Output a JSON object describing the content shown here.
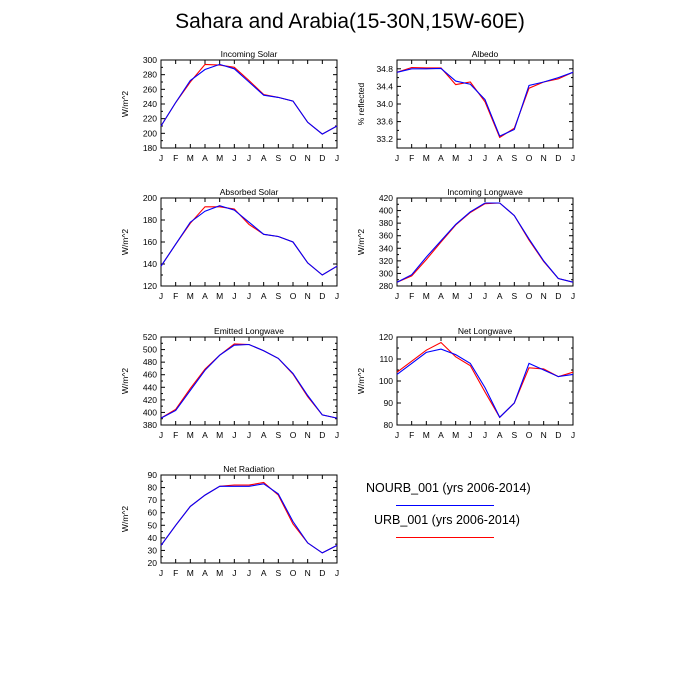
{
  "title": "Sahara and Arabia(15-30N,15W-60E)",
  "months": [
    "J",
    "F",
    "M",
    "A",
    "M",
    "J",
    "J",
    "A",
    "S",
    "O",
    "N",
    "D",
    "J"
  ],
  "legend": [
    {
      "label": "NOURB_001 (yrs 2006-2014)",
      "color": "#0000ff"
    },
    {
      "label": "URB_001 (yrs 2006-2014)",
      "color": "#ff0000"
    }
  ],
  "chart_data": [
    {
      "type": "line",
      "title": "Incoming Solar",
      "ylabel": "W/m^2",
      "ylim": [
        180,
        300
      ],
      "yticks": [
        180,
        200,
        220,
        240,
        260,
        280,
        300
      ],
      "categories": [
        "J",
        "F",
        "M",
        "A",
        "M",
        "J",
        "J",
        "A",
        "S",
        "O",
        "N",
        "D",
        "J"
      ],
      "series": [
        {
          "name": "NOURB_001 (yrs 2006-2014)",
          "color": "#0000ff",
          "values": [
            210,
            242,
            272,
            287,
            294,
            288,
            270,
            252,
            249,
            244,
            215,
            199,
            210
          ]
        },
        {
          "name": "URB_001 (yrs 2006-2014)",
          "color": "#ff0000",
          "values": [
            210,
            242,
            270,
            294,
            293,
            290,
            272,
            253,
            249,
            244,
            215,
            199,
            210
          ]
        }
      ]
    },
    {
      "type": "line",
      "title": "Albedo",
      "ylabel": "% reflected",
      "ylim": [
        33.0,
        35.0
      ],
      "yticks": [
        33.2,
        33.6,
        34.0,
        34.4,
        34.8
      ],
      "categories": [
        "J",
        "F",
        "M",
        "A",
        "M",
        "J",
        "J",
        "A",
        "S",
        "O",
        "N",
        "D",
        "J"
      ],
      "series": [
        {
          "name": "NOURB_001 (yrs 2006-2014)",
          "color": "#0000ff",
          "values": [
            34.72,
            34.8,
            34.8,
            34.81,
            34.52,
            34.45,
            34.1,
            33.27,
            33.42,
            34.42,
            34.5,
            34.6,
            34.72
          ]
        },
        {
          "name": "URB_001 (yrs 2006-2014)",
          "color": "#ff0000",
          "values": [
            34.72,
            34.83,
            34.82,
            34.82,
            34.44,
            34.5,
            34.05,
            33.24,
            33.45,
            34.36,
            34.5,
            34.57,
            34.72
          ]
        }
      ]
    },
    {
      "type": "line",
      "title": "Absorbed Solar",
      "ylabel": "W/m^2",
      "ylim": [
        120,
        200
      ],
      "yticks": [
        120,
        140,
        160,
        180,
        200
      ],
      "categories": [
        "J",
        "F",
        "M",
        "A",
        "M",
        "J",
        "J",
        "A",
        "S",
        "O",
        "N",
        "D",
        "J"
      ],
      "series": [
        {
          "name": "NOURB_001 (yrs 2006-2014)",
          "color": "#0000ff",
          "values": [
            138,
            158,
            178,
            188,
            193,
            189,
            178,
            167,
            165,
            160,
            141,
            130,
            138
          ]
        },
        {
          "name": "URB_001 (yrs 2006-2014)",
          "color": "#ff0000",
          "values": [
            138,
            158,
            177,
            192,
            192,
            190,
            176,
            167,
            165,
            160,
            141,
            130,
            138
          ]
        }
      ]
    },
    {
      "type": "line",
      "title": "Incoming Longwave",
      "ylabel": "W/m^2",
      "ylim": [
        280,
        420
      ],
      "yticks": [
        280,
        300,
        320,
        340,
        360,
        380,
        400,
        420
      ],
      "categories": [
        "J",
        "F",
        "M",
        "A",
        "M",
        "J",
        "J",
        "A",
        "S",
        "O",
        "N",
        "D",
        "J"
      ],
      "series": [
        {
          "name": "NOURB_001 (yrs 2006-2014)",
          "color": "#0000ff",
          "values": [
            286,
            298,
            326,
            352,
            378,
            398,
            412,
            412,
            392,
            355,
            320,
            292,
            286
          ]
        },
        {
          "name": "URB_001 (yrs 2006-2014)",
          "color": "#ff0000",
          "values": [
            286,
            296,
            322,
            350,
            377,
            397,
            411,
            412,
            392,
            353,
            319,
            292,
            286
          ]
        }
      ]
    },
    {
      "type": "line",
      "title": "Emitted Longwave",
      "ylabel": "W/m^2",
      "ylim": [
        380,
        520
      ],
      "yticks": [
        380,
        400,
        420,
        440,
        460,
        480,
        500,
        520
      ],
      "categories": [
        "J",
        "F",
        "M",
        "A",
        "M",
        "J",
        "J",
        "A",
        "S",
        "O",
        "N",
        "D",
        "J"
      ],
      "series": [
        {
          "name": "NOURB_001 (yrs 2006-2014)",
          "color": "#0000ff",
          "values": [
            391,
            403,
            435,
            467,
            491,
            507,
            508,
            498,
            486,
            462,
            427,
            396,
            391
          ]
        },
        {
          "name": "URB_001 (yrs 2006-2014)",
          "color": "#ff0000",
          "values": [
            391,
            405,
            438,
            469,
            491,
            509,
            508,
            498,
            486,
            461,
            425,
            396,
            391
          ]
        }
      ]
    },
    {
      "type": "line",
      "title": "Net Longwave",
      "ylabel": "W/m^2",
      "ylim": [
        80,
        120
      ],
      "yticks": [
        80,
        90,
        100,
        110,
        120
      ],
      "categories": [
        "J",
        "F",
        "M",
        "A",
        "M",
        "J",
        "J",
        "A",
        "S",
        "O",
        "N",
        "D",
        "J"
      ],
      "series": [
        {
          "name": "NOURB_001 (yrs 2006-2014)",
          "color": "#0000ff",
          "values": [
            103,
            108,
            113,
            114.5,
            112,
            108,
            97,
            83.5,
            90,
            108,
            105,
            102,
            103
          ]
        },
        {
          "name": "URB_001 (yrs 2006-2014)",
          "color": "#ff0000",
          "values": [
            104,
            109,
            114,
            117.5,
            111,
            107,
            95,
            83.5,
            90,
            106,
            105.5,
            102,
            104
          ]
        }
      ]
    },
    {
      "type": "line",
      "title": "Net Radiation",
      "ylabel": "W/m^2",
      "ylim": [
        20,
        90
      ],
      "yticks": [
        20,
        30,
        40,
        50,
        60,
        70,
        80,
        90
      ],
      "categories": [
        "J",
        "F",
        "M",
        "A",
        "M",
        "J",
        "J",
        "A",
        "S",
        "O",
        "N",
        "D",
        "J"
      ],
      "series": [
        {
          "name": "NOURB_001 (yrs 2006-2014)",
          "color": "#0000ff",
          "values": [
            34,
            50,
            65,
            74,
            81,
            81,
            81,
            83,
            75,
            53,
            36,
            28,
            34
          ]
        },
        {
          "name": "URB_001 (yrs 2006-2014)",
          "color": "#ff0000",
          "values": [
            34,
            50,
            65,
            74,
            81,
            82,
            82,
            84,
            74,
            51,
            36,
            28,
            34
          ]
        }
      ]
    }
  ]
}
